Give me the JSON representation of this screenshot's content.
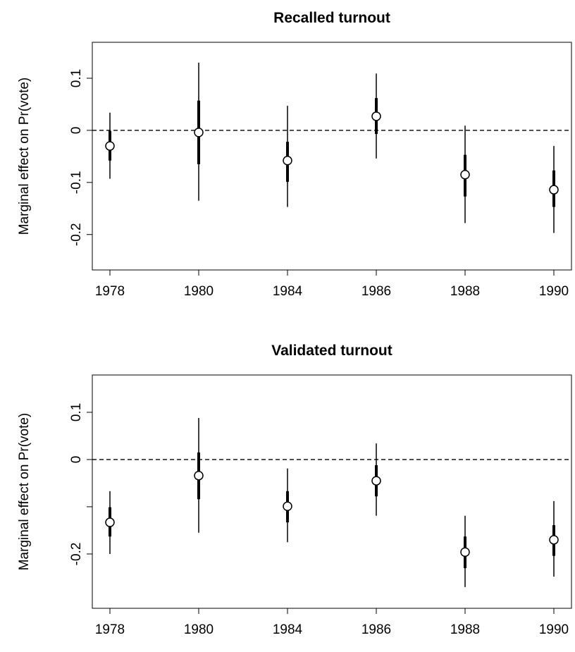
{
  "chart_data": [
    {
      "type": "errorbar",
      "title": "Recalled turnout",
      "ylabel": "Marginal effect on Pr(vote)",
      "categories": [
        "1978",
        "1980",
        "1984",
        "1986",
        "1988",
        "1990"
      ],
      "values": [
        -0.03,
        -0.004,
        -0.058,
        0.027,
        -0.085,
        -0.114
      ],
      "inner_lower": [
        -0.058,
        -0.065,
        -0.099,
        -0.007,
        -0.127,
        -0.147
      ],
      "inner_upper": [
        -0.001,
        0.057,
        -0.022,
        0.062,
        -0.047,
        -0.077
      ],
      "outer_lower": [
        -0.093,
        -0.135,
        -0.147,
        -0.054,
        -0.178,
        -0.197
      ],
      "outer_upper": [
        0.034,
        0.13,
        0.047,
        0.109,
        0.009,
        -0.03
      ],
      "hline": 0,
      "ylim": [
        -0.268,
        0.169
      ],
      "yticks": [
        -0.2,
        -0.1,
        0,
        0.1
      ]
    },
    {
      "type": "errorbar",
      "title": "Validated turnout",
      "ylabel": "Marginal effect on Pr(vote)",
      "categories": [
        "1978",
        "1980",
        "1984",
        "1986",
        "1988",
        "1990"
      ],
      "values": [
        -0.133,
        -0.034,
        -0.099,
        -0.045,
        -0.196,
        -0.17
      ],
      "inner_lower": [
        -0.163,
        -0.084,
        -0.133,
        -0.078,
        -0.23,
        -0.204
      ],
      "inner_upper": [
        -0.101,
        0.015,
        -0.067,
        -0.012,
        -0.163,
        -0.139
      ],
      "outer_lower": [
        -0.2,
        -0.155,
        -0.175,
        -0.119,
        -0.27,
        -0.248
      ],
      "outer_upper": [
        -0.067,
        0.088,
        -0.019,
        0.034,
        -0.119,
        -0.088
      ],
      "hline": 0,
      "ylim": [
        -0.315,
        0.179
      ],
      "yticks": [
        -0.2,
        {
          "value": -0.1,
          "label": null
        },
        0,
        0.1
      ]
    }
  ]
}
